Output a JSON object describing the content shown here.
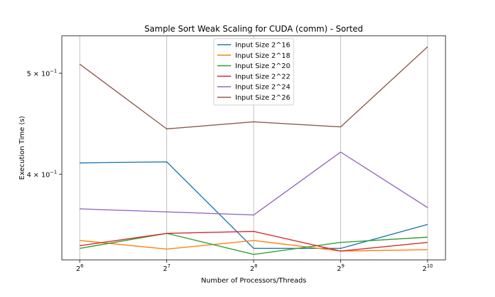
{
  "chart_data": {
    "type": "line",
    "title": "Sample Sort Weak Scaling for CUDA (comm) - Sorted",
    "xlabel": "Number of Processors/Threads",
    "ylabel": "Execution Time (s)",
    "x": [
      64,
      128,
      256,
      512,
      1024
    ],
    "x_ticks": [
      {
        "base": "2",
        "exp": "6"
      },
      {
        "base": "2",
        "exp": "7"
      },
      {
        "base": "2",
        "exp": "8"
      },
      {
        "base": "2",
        "exp": "9"
      },
      {
        "base": "2",
        "exp": "10"
      }
    ],
    "y_ticks": [
      {
        "value": 0.4,
        "mantissa": "4",
        "exp": "−1"
      },
      {
        "value": 0.5,
        "mantissa": "5",
        "exp": "−1"
      }
    ],
    "x_scale": "log2",
    "y_scale": "log",
    "ylim": [
      0.331,
      0.543
    ],
    "grid": "vertical",
    "legend_position": "top-center",
    "series": [
      {
        "name": "Input Size 2^16",
        "color": "#1f77b4",
        "values": [
          0.41,
          0.411,
          0.3395,
          0.3395,
          0.358
        ]
      },
      {
        "name": "Input Size 2^18",
        "color": "#ff7f0e",
        "values": [
          0.3455,
          0.339,
          0.3455,
          0.3375,
          0.3385
        ]
      },
      {
        "name": "Input Size 2^20",
        "color": "#2ca02c",
        "values": [
          0.3395,
          0.351,
          0.335,
          0.344,
          0.348
        ]
      },
      {
        "name": "Input Size 2^22",
        "color": "#d62728",
        "values": [
          0.3415,
          0.351,
          0.3525,
          0.3375,
          0.344
        ]
      },
      {
        "name": "Input Size 2^24",
        "color": "#9467bd",
        "values": [
          0.3705,
          0.368,
          0.3655,
          0.42,
          0.3715
        ]
      },
      {
        "name": "Input Size 2^26",
        "color": "#8c564b",
        "values": [
          0.51,
          0.442,
          0.449,
          0.444,
          0.53
        ]
      }
    ]
  }
}
